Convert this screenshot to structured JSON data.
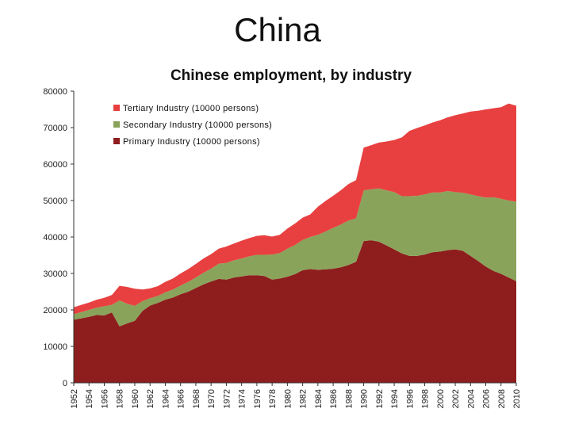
{
  "slide": {
    "title": "China"
  },
  "colors": {
    "tertiary": "#e84040",
    "secondary": "#8aa35a",
    "primary": "#8e1e1e",
    "background": "#ffffff",
    "gridline": "#cccccc"
  },
  "chart_data": {
    "type": "area",
    "stacked": true,
    "title": "Chinese employment, by industry",
    "xlabel": "",
    "ylabel": "",
    "ylim": [
      0,
      80000
    ],
    "yticks": [
      0,
      10000,
      20000,
      30000,
      40000,
      50000,
      60000,
      70000,
      80000
    ],
    "xticks": [
      1952,
      1954,
      1956,
      1958,
      1960,
      1962,
      1964,
      1966,
      1968,
      1970,
      1972,
      1974,
      1976,
      1978,
      1980,
      1982,
      1984,
      1986,
      1988,
      1990,
      1992,
      1994,
      1996,
      1998,
      2000,
      2002,
      2004,
      2006,
      2008,
      2010
    ],
    "grid": "none",
    "legend_position": "top-left",
    "x": [
      1952,
      1953,
      1954,
      1955,
      1956,
      1957,
      1958,
      1959,
      1960,
      1961,
      1962,
      1963,
      1964,
      1965,
      1966,
      1967,
      1968,
      1969,
      1970,
      1971,
      1972,
      1973,
      1974,
      1975,
      1976,
      1977,
      1978,
      1979,
      1980,
      1981,
      1982,
      1983,
      1984,
      1985,
      1986,
      1987,
      1988,
      1989,
      1990,
      1991,
      1992,
      1993,
      1994,
      1995,
      1996,
      1997,
      1998,
      1999,
      2000,
      2001,
      2002,
      2003,
      2004,
      2005,
      2006,
      2007,
      2008,
      2009,
      2010
    ],
    "series": [
      {
        "name": "Primary Industry (10000 persons)",
        "color_key": "primary",
        "values": [
          17300,
          17700,
          18100,
          18600,
          18500,
          19300,
          15500,
          16300,
          17000,
          19700,
          21200,
          21900,
          22800,
          23400,
          24300,
          25000,
          26000,
          27000,
          27800,
          28500,
          28300,
          28900,
          29200,
          29500,
          29500,
          29300,
          28300,
          28600,
          29100,
          29800,
          30900,
          31200,
          31000,
          31100,
          31300,
          31700,
          32300,
          33200,
          38900,
          39100,
          38700,
          37700,
          36600,
          35500,
          34800,
          34800,
          35200,
          35800,
          36000,
          36400,
          36600,
          36200,
          34800,
          33400,
          31900,
          30700,
          29900,
          28900,
          27900
        ]
      },
      {
        "name": "Secondary Industry (10000 persons)",
        "color_key": "secondary",
        "values": [
          1500,
          1700,
          1900,
          2000,
          2500,
          2100,
          7100,
          5400,
          4100,
          2700,
          2000,
          1900,
          2000,
          2200,
          2400,
          2700,
          2900,
          3200,
          3500,
          4200,
          4600,
          4700,
          4900,
          5200,
          5600,
          5800,
          6900,
          7000,
          7700,
          8000,
          8300,
          8800,
          9600,
          10400,
          11200,
          11700,
          12200,
          11900,
          13900,
          14000,
          14600,
          15100,
          15700,
          15700,
          16400,
          16500,
          16500,
          16400,
          16200,
          16200,
          15700,
          15900,
          16900,
          17800,
          18900,
          20200,
          20600,
          21100,
          21800
        ]
      },
      {
        "name": "Tertiary Industry (10000 persons)",
        "color_key": "tertiary",
        "values": [
          1900,
          2000,
          2000,
          2200,
          2300,
          2700,
          4000,
          4600,
          4700,
          3200,
          2700,
          2700,
          2900,
          3000,
          3300,
          3500,
          3700,
          3900,
          4000,
          4100,
          4500,
          4600,
          4900,
          5000,
          5200,
          5400,
          4900,
          5000,
          5500,
          5900,
          6100,
          6200,
          7700,
          8400,
          8800,
          9400,
          10000,
          10500,
          11700,
          12100,
          12600,
          13400,
          14300,
          16100,
          17900,
          18600,
          18900,
          19200,
          19800,
          20200,
          21100,
          21800,
          22700,
          23400,
          24200,
          24400,
          25100,
          26600,
          26300
        ]
      }
    ],
    "legend_order": [
      "Tertiary Industry (10000 persons)",
      "Secondary Industry (10000 persons)",
      "Primary Industry (10000 persons)"
    ]
  }
}
